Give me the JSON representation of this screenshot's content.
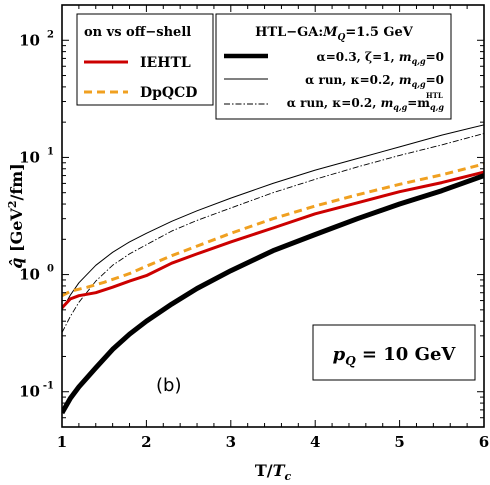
{
  "chart_data": {
    "type": "line",
    "y_scale": "log",
    "xlim": [
      1,
      6
    ],
    "ylim": [
      0.05,
      200
    ],
    "xticks": [
      "1",
      "2",
      "3",
      "4",
      "5",
      "6"
    ],
    "yticks": [
      {
        "value": 0.1,
        "base": "10",
        "exp": "-1"
      },
      {
        "value": 1,
        "base": "10",
        "exp": "0"
      },
      {
        "value": 10,
        "base": "10",
        "exp": "1"
      },
      {
        "value": 100,
        "base": "10",
        "exp": "2"
      }
    ],
    "xlabel": {
      "main": "T/",
      "var": "T",
      "sub": "c"
    },
    "ylabel": {
      "var": "q̂",
      "rest": " [GeV",
      "sup": "2",
      "tail": "/fm]"
    },
    "annotations": {
      "panel": "(b)",
      "momentum": {
        "var": "p",
        "sub": "Q",
        "rest": " = 10 GeV"
      }
    },
    "legend_left": {
      "title": "on vs off−shell",
      "entries": [
        {
          "label": "IEHTL",
          "color": "#cc0000",
          "style": "solid"
        },
        {
          "label": "DpQCD",
          "color": "#f0a020",
          "style": "dashed"
        }
      ]
    },
    "legend_right": {
      "title": "HTL−GA:",
      "title_var": "M",
      "title_sub": "Q",
      "title_rest": "=1.5 GeV",
      "entries": [
        {
          "text": "α=0.3, ζ=1, ",
          "var": "m",
          "sub": "q,g",
          "tail": "=0",
          "sup": "",
          "style": "thick"
        },
        {
          "text": "α run, κ=0.2, ",
          "var": "m",
          "sub": "q,g",
          "tail": "=0",
          "sup": "",
          "style": "thin"
        },
        {
          "text": "α run, κ=0.2, ",
          "var": "m",
          "sub": "q,g",
          "tail": "=m",
          "sup": "HTL",
          "tail_sub": "q,g",
          "style": "dashdot"
        }
      ]
    },
    "series": [
      {
        "name": "IEHTL",
        "color": "#cc0000",
        "style": "solid",
        "x": [
          1,
          1.1,
          1.2,
          1.4,
          1.6,
          1.8,
          2.0,
          2.3,
          2.6,
          3.0,
          3.5,
          4.0,
          4.5,
          5.0,
          5.5,
          6.0
        ],
        "y": [
          0.52,
          0.62,
          0.66,
          0.7,
          0.78,
          0.88,
          0.98,
          1.25,
          1.5,
          1.9,
          2.5,
          3.3,
          4.1,
          5.1,
          6.1,
          7.5
        ]
      },
      {
        "name": "DpQCD",
        "color": "#f0a020",
        "style": "dashed",
        "x": [
          1,
          1.1,
          1.3,
          1.5,
          1.8,
          2.0,
          2.3,
          2.6,
          3.0,
          3.5,
          4.0,
          4.5,
          5.0,
          5.5,
          6.0
        ],
        "y": [
          0.66,
          0.72,
          0.78,
          0.86,
          1.02,
          1.18,
          1.45,
          1.75,
          2.25,
          3.0,
          3.85,
          4.8,
          5.9,
          7.1,
          8.8
        ]
      },
      {
        "name": "α=0.3, ζ=1, m_q,g=0",
        "color": "#000000",
        "style": "thick",
        "x": [
          1,
          1.1,
          1.2,
          1.4,
          1.6,
          1.8,
          2.0,
          2.3,
          2.6,
          3.0,
          3.5,
          4.0,
          4.5,
          5.0,
          5.5,
          6.0
        ],
        "y": [
          0.066,
          0.088,
          0.11,
          0.16,
          0.23,
          0.31,
          0.4,
          0.56,
          0.76,
          1.08,
          1.6,
          2.2,
          3.0,
          4.0,
          5.2,
          7.0
        ]
      },
      {
        "name": "α run, κ=0.2, m_q,g=0",
        "color": "#000000",
        "style": "thin",
        "x": [
          1,
          1.1,
          1.2,
          1.4,
          1.6,
          1.8,
          2.0,
          2.3,
          2.6,
          3.0,
          3.5,
          4.0,
          4.5,
          5.0,
          5.5,
          6.0
        ],
        "y": [
          0.5,
          0.67,
          0.85,
          1.2,
          1.55,
          1.9,
          2.25,
          2.85,
          3.5,
          4.5,
          6.0,
          7.8,
          9.8,
          12.3,
          15.5,
          19.0
        ]
      },
      {
        "name": "α run, κ=0.2, m_q,g=m_q,g^HTL",
        "color": "#000000",
        "style": "dashdot",
        "x": [
          1,
          1.1,
          1.2,
          1.4,
          1.6,
          1.8,
          2.0,
          2.3,
          2.6,
          3.0,
          3.5,
          4.0,
          4.5,
          5.0,
          5.5,
          6.0
        ],
        "y": [
          0.32,
          0.44,
          0.58,
          0.88,
          1.2,
          1.5,
          1.8,
          2.35,
          2.9,
          3.7,
          5.0,
          6.5,
          8.3,
          10.4,
          12.8,
          16.0
        ]
      }
    ]
  }
}
